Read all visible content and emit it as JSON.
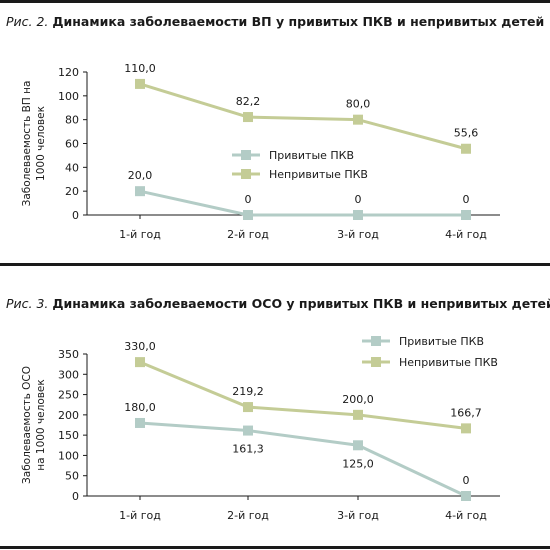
{
  "figures": [
    {
      "prefix": "Рис. 2.",
      "title": "Динамика заболеваемости ВП у привитых ПКВ и непривитых детей"
    },
    {
      "prefix": "Рис. 3.",
      "title": "Динамика заболеваемости ОСО у привитых ПКВ и непривитых детей"
    }
  ],
  "colors": {
    "vaccinated": "#b3ccc6",
    "unvaccinated": "#c4cc96",
    "axis": "#1a1a1a",
    "rule": "#1a1a1a"
  },
  "chart_data": [
    {
      "type": "line",
      "categories": [
        "1-й год",
        "2-й год",
        "3-й год",
        "4-й год"
      ],
      "ylabel": "Заболеваемость ВП на 1000 человек",
      "ylabel_lines": [
        "Заболеваемость ВП на",
        "1000 человек"
      ],
      "ylim": [
        0,
        120
      ],
      "yticks": [
        0,
        20,
        40,
        60,
        80,
        100,
        120
      ],
      "grid": false,
      "legend_position": "center-right",
      "series": [
        {
          "name": "Привитые ПКВ",
          "values": [
            20.0,
            0,
            0,
            0
          ],
          "labels": [
            "20,0",
            "0",
            "0",
            "0"
          ],
          "color_key": "vaccinated"
        },
        {
          "name": "Непривитые ПКВ",
          "values": [
            110.0,
            82.2,
            80.0,
            55.6
          ],
          "labels": [
            "110,0",
            "82,2",
            "80,0",
            "55,6"
          ],
          "color_key": "unvaccinated"
        }
      ]
    },
    {
      "type": "line",
      "categories": [
        "1-й год",
        "2-й год",
        "3-й год",
        "4-й год"
      ],
      "ylabel": "Заболеваемость ОСО на 1000 человек",
      "ylabel_lines": [
        "Заболеваемость ОСО",
        "на 1000 человек"
      ],
      "ylim": [
        0,
        350
      ],
      "yticks": [
        0,
        50,
        100,
        150,
        200,
        250,
        300,
        350
      ],
      "grid": false,
      "legend_position": "top-right",
      "series": [
        {
          "name": "Привитые ПКВ",
          "values": [
            180.0,
            161.3,
            125.0,
            0
          ],
          "labels": [
            "180,0",
            "161,3",
            "125,0",
            "0"
          ],
          "color_key": "vaccinated"
        },
        {
          "name": "Непривитые ПКВ",
          "values": [
            330.0,
            219.2,
            200.0,
            166.7
          ],
          "labels": [
            "330,0",
            "219,2",
            "200,0",
            "166,7"
          ],
          "color_key": "unvaccinated"
        }
      ]
    }
  ]
}
